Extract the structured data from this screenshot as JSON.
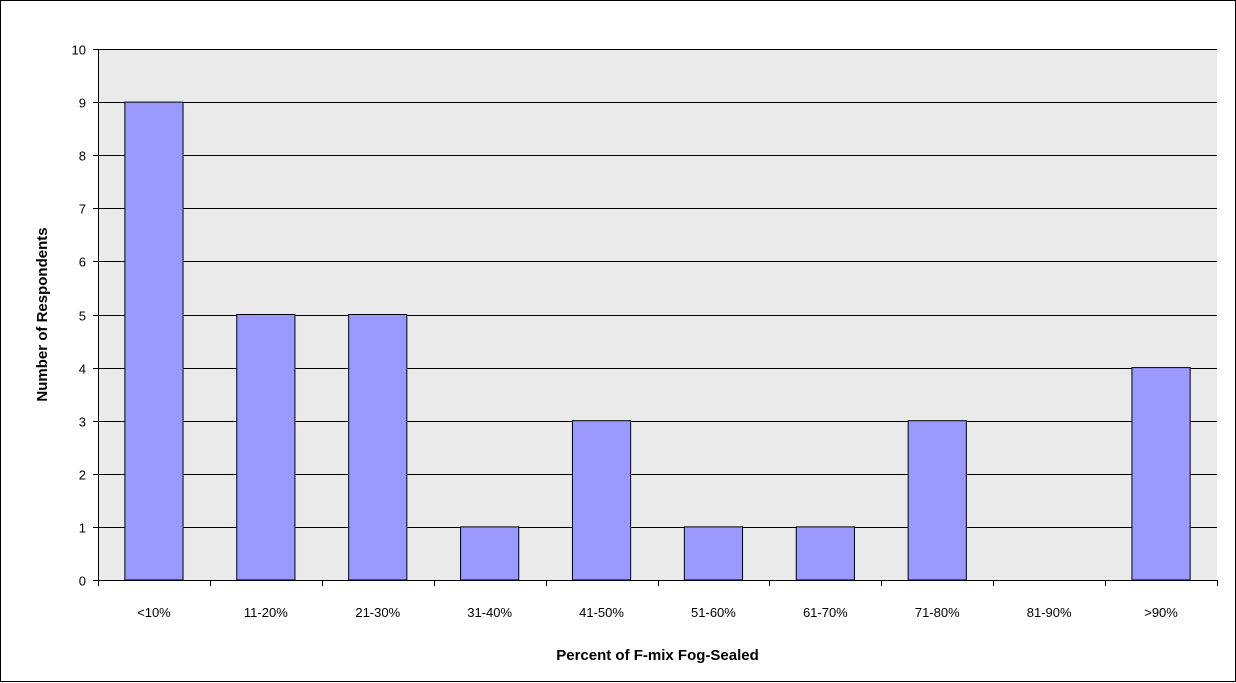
{
  "chart_data": {
    "type": "bar",
    "title": "",
    "xlabel": "Percent of F-mix Fog-Sealed",
    "ylabel": "Number of Respondents",
    "categories": [
      "<10%",
      "11-20%",
      "21-30%",
      "31-40%",
      "41-50%",
      "51-60%",
      "61-70%",
      "71-80%",
      "81-90%",
      ">90%"
    ],
    "values": [
      9,
      5,
      5,
      1,
      3,
      1,
      1,
      3,
      0,
      4
    ],
    "ylim": [
      0,
      10
    ],
    "yticks": [
      "0",
      "1",
      "2",
      "3",
      "4",
      "5",
      "6",
      "7",
      "8",
      "9",
      "10"
    ],
    "grid": true,
    "legend": "none",
    "colors": {
      "bar_fill": "#9999FF",
      "bar_stroke": "#000000",
      "plot_background": "#EAEAEA",
      "gridline": "#000000"
    }
  }
}
